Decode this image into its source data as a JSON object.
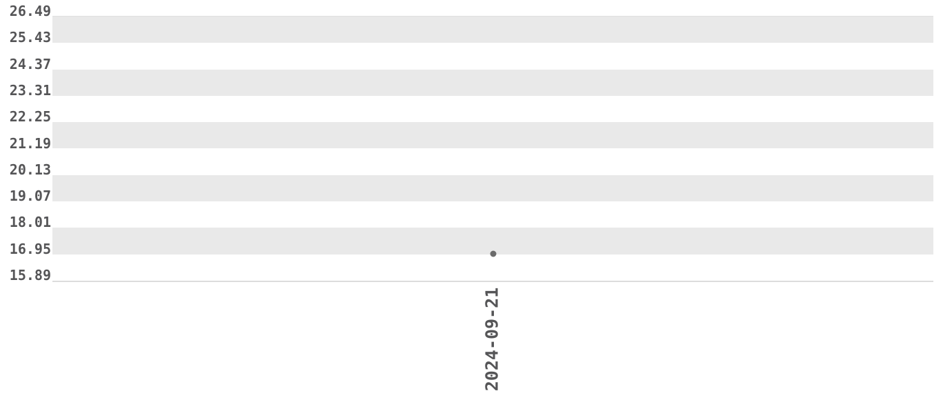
{
  "chart_data": {
    "type": "scatter",
    "title": "",
    "xlabel": "",
    "ylabel": "",
    "categories": [
      "2024-09-21"
    ],
    "values": [
      16.96
    ],
    "x_tick_labels": [
      "2024-09-21"
    ],
    "y_ticks": [
      26.49,
      25.43,
      24.37,
      23.31,
      22.25,
      21.19,
      20.13,
      19.07,
      18.01,
      16.95,
      15.89
    ],
    "y_tick_step": 1.06,
    "ylim": [
      15.89,
      26.49
    ],
    "grid": "horizontal alternating shaded bands, band per tick interval starting shaded at top",
    "legend": "none",
    "marker": "small filled circle",
    "colors": {
      "background": "#ffffff",
      "band": "#e9e9e9",
      "axis_line": "#dcdcdc",
      "tick_text": "#555557",
      "point": "#6b6b6b"
    }
  }
}
